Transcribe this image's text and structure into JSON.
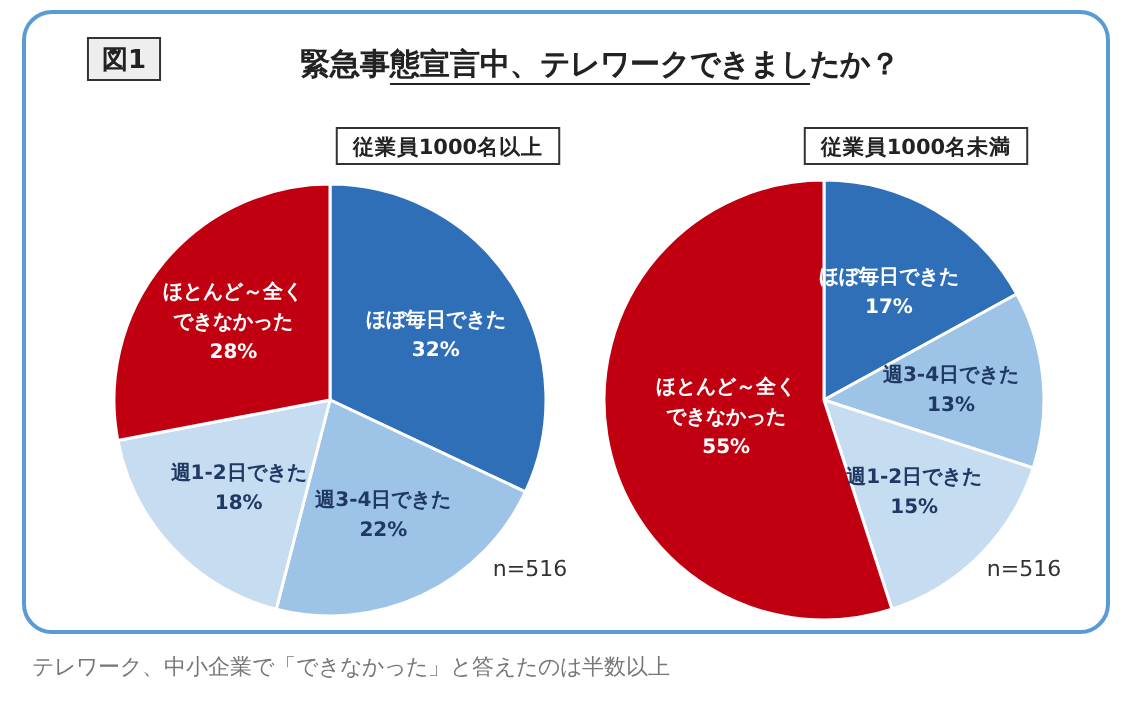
{
  "chart_data": [
    {
      "type": "pie",
      "title": "緊急事態宣言中、テレワークできましたか？",
      "subtitle": "従業員1000名以上",
      "categories": [
        "ほぼ毎日できた",
        "週3-4日できた",
        "週1-2日できた",
        "ほとんど～全くできなかった"
      ],
      "values": [
        32,
        22,
        18,
        28
      ],
      "value_labels": [
        "32%",
        "22%",
        "18%",
        "28%"
      ],
      "colors": [
        "#2e6fb7",
        "#9dc3e6",
        "#c6dcf0",
        "#c00010"
      ],
      "annotations": [
        "図1",
        "n=516",
        "テレワーク、中小企業で「できなかった」と答えたのは半数以上"
      ]
    },
    {
      "type": "pie",
      "subtitle": "従業員1000名未満",
      "categories": [
        "ほぼ毎日できた",
        "週3-4日できた",
        "週1-2日できた",
        "ほとんど～全くできなかった"
      ],
      "values": [
        17,
        13,
        15,
        55
      ],
      "value_labels": [
        "17%",
        "13%",
        "15%",
        "55%"
      ],
      "colors": [
        "#2e6fb7",
        "#9dc3e6",
        "#c6dcf0",
        "#c00010"
      ],
      "annotations": [
        "n=516"
      ]
    }
  ]
}
